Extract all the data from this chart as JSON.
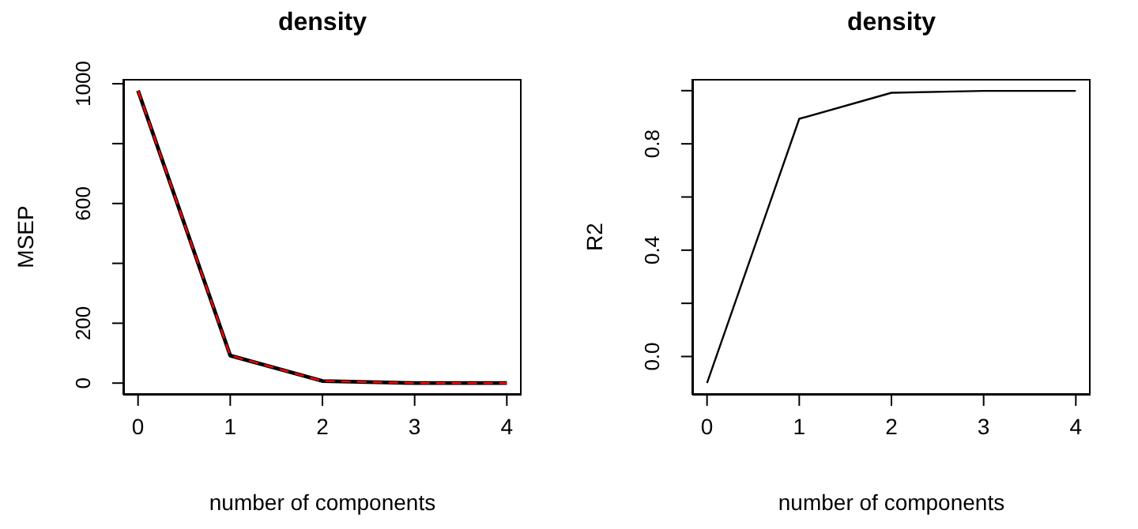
{
  "chart_data": [
    {
      "type": "line",
      "title": "density",
      "xlabel": "number of components",
      "ylabel": "MSEP",
      "x": [
        0,
        1,
        2,
        3,
        4
      ],
      "xlim": [
        -0.16,
        4.16
      ],
      "xticks": [
        0,
        1,
        2,
        3,
        4
      ],
      "ylim": [
        -39,
        1016
      ],
      "yticks": [
        0,
        200,
        {
          "value": 400,
          "label": null
        },
        600,
        {
          "value": 800,
          "label": null
        },
        1000
      ],
      "grid": false,
      "legend": false,
      "marker": "none",
      "series": [
        {
          "color": "#000000",
          "line_style": "solid",
          "values": [
            977,
            92,
            7,
            0,
            0
          ]
        },
        {
          "color": "#ff0000",
          "line_style": "dashed",
          "values": [
            977,
            92,
            7,
            0,
            0
          ]
        }
      ]
    },
    {
      "type": "line",
      "title": "density",
      "xlabel": "number of components",
      "ylabel": "R2",
      "x": [
        0,
        1,
        2,
        3,
        4
      ],
      "xlim": [
        -0.16,
        4.16
      ],
      "xticks": [
        0,
        1,
        2,
        3,
        4
      ],
      "ylim": [
        -0.144,
        1.044
      ],
      "yticks": [
        {
          "value": 0,
          "label": "0.0"
        },
        {
          "value": 0.2,
          "label": null
        },
        {
          "value": 0.4,
          "label": "0.4"
        },
        {
          "value": 0.6,
          "label": null
        },
        {
          "value": 0.8,
          "label": "0.8"
        },
        {
          "value": 1,
          "label": null
        }
      ],
      "grid": false,
      "legend": false,
      "marker": "none",
      "series": [
        {
          "color": "#000000",
          "line_style": "solid",
          "values": [
            -0.1,
            0.894,
            0.992,
            0.999,
            0.999
          ]
        }
      ]
    }
  ]
}
